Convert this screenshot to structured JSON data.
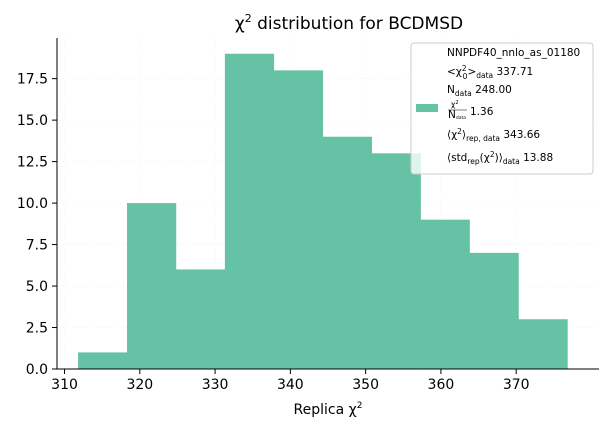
{
  "chart_data": {
    "type": "bar",
    "title_main": "χ",
    "title_sup": "2",
    "title_rest": " distribution for BCDMSD",
    "xlabel_main": "Replica χ",
    "xlabel_sup": "2",
    "ylabel": "",
    "xlim": [
      309,
      381
    ],
    "ylim": [
      0,
      19.95
    ],
    "xticks": [
      310,
      320,
      330,
      340,
      350,
      360,
      370
    ],
    "xtick_labels": [
      "310",
      "320",
      "330",
      "340",
      "350",
      "360",
      "370"
    ],
    "yticks": [
      0,
      2.5,
      5,
      7.5,
      10,
      12.5,
      15,
      17.5
    ],
    "ytick_labels": [
      "0.0",
      "2.5",
      "5.0",
      "7.5",
      "10.0",
      "12.5",
      "15.0",
      "17.5"
    ],
    "bin_edges": [
      311.8,
      318.3,
      324.8,
      331.3,
      337.8,
      344.3,
      350.8,
      357.3,
      363.8,
      370.3,
      376.8
    ],
    "values": [
      1,
      10,
      6,
      19,
      18,
      14,
      13,
      9,
      7,
      3
    ],
    "bar_color": "#66c2a5",
    "legend_position": "top-right",
    "legend": {
      "title": "NNPDF40_nnlo_as_01180",
      "chi0_value": "337.71",
      "ndata_value": "248.00",
      "ratio_value": "1.36",
      "rep_value": "343.66",
      "std_value": "13.88"
    }
  }
}
